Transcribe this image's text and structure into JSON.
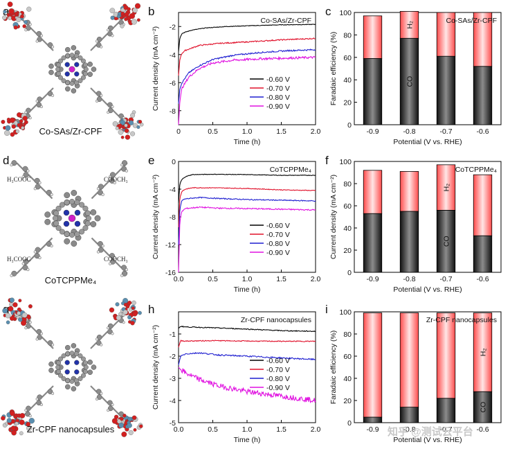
{
  "watermark": "知乎 @测试云平台",
  "colors": {
    "black": "#000000",
    "red": "#e0102a",
    "blue": "#1f1fd0",
    "magenta": "#e010e0",
    "bar_red": "#ff5a5a",
    "co_dark": "#111111"
  },
  "rows": [
    {
      "molecule": {
        "letter": "a",
        "caption": "Co-SAs/Zr-CPF",
        "type": "capsule"
      },
      "chart_data": {
        "letter": "b",
        "type": "line",
        "title": "Co-SAs/Zr-CPF",
        "xlabel": "Time (h)",
        "ylabel": "Current density (mA cm⁻²)",
        "xlim": [
          0,
          2.0
        ],
        "ylim": [
          -9,
          -1
        ],
        "xticks": [
          "0",
          "0.5",
          "1.0",
          "1.5",
          "2.0"
        ],
        "yticks": [
          -8,
          -6,
          -4,
          -2
        ],
        "yticklabels": [
          "-8",
          "-6",
          "-4",
          "-2"
        ],
        "series": [
          {
            "name": "-0.60 V",
            "color": "#000000",
            "x": [
              0,
              0.02,
              0.05,
              0.1,
              0.2,
              0.4,
              0.7,
              1.0,
              1.5,
              2.0
            ],
            "y": [
              -3.8,
              -2.8,
              -2.5,
              -2.4,
              -2.25,
              -2.1,
              -2.0,
              -1.95,
              -1.88,
              -1.85
            ],
            "noise": 0.02
          },
          {
            "name": "-0.70 V",
            "color": "#e0102a",
            "x": [
              0,
              0.02,
              0.05,
              0.1,
              0.3,
              0.6,
              1.0,
              1.5,
              2.0
            ],
            "y": [
              -5.5,
              -4.3,
              -3.9,
              -3.7,
              -3.35,
              -3.2,
              -3.1,
              -2.95,
              -2.85
            ],
            "noise": 0.04
          },
          {
            "name": "-0.80 V",
            "color": "#1f1fd0",
            "x": [
              0,
              0.02,
              0.05,
              0.15,
              0.3,
              0.5,
              0.8,
              1.2,
              1.6,
              2.0
            ],
            "y": [
              -7.5,
              -6.4,
              -6.0,
              -5.3,
              -4.8,
              -4.35,
              -4.05,
              -3.85,
              -3.72,
              -3.65
            ],
            "noise": 0.05
          },
          {
            "name": "-0.90 V",
            "color": "#e010e0",
            "x": [
              0,
              0.02,
              0.05,
              0.15,
              0.3,
              0.5,
              0.8,
              1.2,
              1.6,
              2.0
            ],
            "y": [
              -9.0,
              -7.3,
              -6.4,
              -5.6,
              -5.0,
              -4.6,
              -4.4,
              -4.3,
              -4.25,
              -4.2
            ],
            "noise": 0.08
          }
        ],
        "legend": [
          "-0.60 V",
          "-0.70 V",
          "-0.80 V",
          "-0.90 V"
        ]
      },
      "fe": {
        "letter": "c",
        "type": "bar",
        "title": "Co-SAs/Zr-CPF",
        "xlabel": "Potential (V vs. RHE)",
        "ylabel": "Faradaic efficiency (%)",
        "ylim": [
          0,
          100
        ],
        "yticks": [
          "0",
          "20",
          "40",
          "60",
          "80",
          "100"
        ],
        "categories": [
          "-0.9",
          "-0.8",
          "-0.7",
          "-0.6"
        ],
        "co": [
          59,
          77,
          61,
          52
        ],
        "h2": [
          38,
          24,
          39,
          48
        ],
        "co_label": {
          "index": 1,
          "text": "CO"
        },
        "h2_label": {
          "index": 1,
          "text": "H₂"
        }
      }
    },
    {
      "molecule": {
        "letter": "d",
        "caption": "CoTCPPMe₄",
        "type": "porphyrin",
        "subs": [
          "H₃COOC",
          "COOCH₃",
          "H₃COOC",
          "COOCH₃"
        ]
      },
      "chart_data": {
        "letter": "e",
        "type": "line",
        "title": "CoTCPPMe₄",
        "xlabel": "Time (h)",
        "ylabel": "Current density (mA cm⁻²)",
        "xlim": [
          0,
          2.0
        ],
        "ylim": [
          -16,
          0
        ],
        "xticks": [
          "0.0",
          "0.5",
          "1.0",
          "1.5",
          "2.0"
        ],
        "yticks": [
          -16,
          -12,
          -8,
          -4,
          0
        ],
        "yticklabels": [
          "-16",
          "-12",
          "-8",
          "-4",
          "0"
        ],
        "series": [
          {
            "name": "-0.60 V",
            "color": "#000000",
            "x": [
              0,
              0.02,
              0.05,
              0.1,
              0.2,
              0.5,
              1.0,
              1.5,
              2.0
            ],
            "y": [
              -6.0,
              -3.2,
              -2.6,
              -2.2,
              -1.9,
              -1.85,
              -1.9,
              -2.0,
              -2.0
            ],
            "noise": 0.04
          },
          {
            "name": "-0.70 V",
            "color": "#e0102a",
            "x": [
              0,
              0.02,
              0.05,
              0.1,
              0.2,
              0.5,
              1.0,
              1.5,
              2.0
            ],
            "y": [
              -9.5,
              -5.2,
              -4.3,
              -4.0,
              -3.8,
              -3.8,
              -3.9,
              -4.1,
              -4.2
            ],
            "noise": 0.05
          },
          {
            "name": "-0.80 V",
            "color": "#1f1fd0",
            "x": [
              0,
              0.02,
              0.05,
              0.1,
              0.3,
              0.6,
              1.0,
              1.5,
              2.0
            ],
            "y": [
              -12.0,
              -6.8,
              -5.6,
              -5.4,
              -5.2,
              -5.35,
              -5.5,
              -5.6,
              -5.7
            ],
            "noise": 0.07
          },
          {
            "name": "-0.90 V",
            "color": "#e010e0",
            "x": [
              0,
              0.02,
              0.05,
              0.1,
              0.3,
              0.6,
              1.0,
              1.5,
              2.0
            ],
            "y": [
              -16.0,
              -8.5,
              -7.2,
              -6.8,
              -6.6,
              -6.75,
              -6.8,
              -6.9,
              -7.0
            ],
            "noise": 0.09
          }
        ],
        "legend": [
          "-0.60 V",
          "-0.70 V",
          "-0.80 V",
          "-0.90 V"
        ]
      },
      "fe": {
        "letter": "f",
        "type": "bar",
        "title": "CoTCPPMe₄",
        "xlabel": "Potential (V vs. RHE)",
        "ylabel": "Current density (mA cm⁻²)",
        "ylim": [
          0,
          100
        ],
        "yticks": [
          "0",
          "20",
          "40",
          "60",
          "80",
          "100"
        ],
        "categories": [
          "-0.9",
          "-0.8",
          "-0.7",
          "-0.6"
        ],
        "co": [
          53,
          55,
          56,
          33
        ],
        "h2": [
          39,
          36,
          41,
          55
        ],
        "co_label": {
          "index": 2,
          "text": "CO"
        },
        "h2_label": {
          "index": 2,
          "text": "H₂"
        }
      }
    },
    {
      "molecule": {
        "letter": "g",
        "caption": "Zr-CPF nanocapsules",
        "type": "capsule-nocobalt"
      },
      "chart_data": {
        "letter": "h",
        "type": "line",
        "title": "Zr-CPF nanocapsules",
        "xlabel": "Time (h)",
        "ylabel": "Current density (mA cm⁻²)",
        "xlim": [
          0,
          2.0
        ],
        "ylim": [
          -5,
          0
        ],
        "xticks": [
          "0.0",
          "0.5",
          "1.0",
          "1.5",
          "2.0"
        ],
        "yticks": [
          -5,
          -4,
          -3,
          -2,
          -1
        ],
        "yticklabels": [
          "-5",
          "-4",
          "-3",
          "-2",
          "-1"
        ],
        "series": [
          {
            "name": "-0.60 V",
            "color": "#000000",
            "x": [
              0,
              0.03,
              0.1,
              0.5,
              1.0,
              1.5,
              2.0
            ],
            "y": [
              -0.75,
              -0.65,
              -0.68,
              -0.72,
              -0.78,
              -0.85,
              -0.88
            ],
            "noise": 0.02
          },
          {
            "name": "-0.70 V",
            "color": "#e0102a",
            "x": [
              0,
              0.03,
              0.1,
              0.5,
              1.0,
              1.5,
              2.0
            ],
            "y": [
              -1.6,
              -1.3,
              -1.32,
              -1.3,
              -1.32,
              -1.33,
              -1.33
            ],
            "noise": 0.02
          },
          {
            "name": "-0.80 V",
            "color": "#1f1fd0",
            "x": [
              0,
              0.03,
              0.1,
              0.3,
              0.6,
              1.0,
              1.5,
              2.0
            ],
            "y": [
              -2.4,
              -2.0,
              -1.9,
              -1.85,
              -1.95,
              -2.0,
              -2.08,
              -2.15
            ],
            "noise": 0.03
          },
          {
            "name": "-0.90 V",
            "color": "#e010e0",
            "x": [
              0,
              0.03,
              0.1,
              0.3,
              0.6,
              1.0,
              1.5,
              2.0
            ],
            "y": [
              -2.5,
              -2.6,
              -2.75,
              -3.05,
              -3.35,
              -3.6,
              -3.8,
              -4.0
            ],
            "noise": 0.12
          }
        ],
        "legend": [
          "-0.60 V",
          "-0.70 V",
          "-0.80 V",
          "-0.90 V"
        ]
      },
      "fe": {
        "letter": "i",
        "type": "bar",
        "title": "Zr-CPF nanocapsules",
        "xlabel": "Potential (V vs. RHE)",
        "ylabel": "Faradaic efficiency (%)",
        "ylim": [
          0,
          100
        ],
        "yticks": [
          "0",
          "20",
          "40",
          "60",
          "80",
          "100"
        ],
        "categories": [
          "-0.9",
          "-0.8",
          "-0.7",
          "-0.6"
        ],
        "co": [
          5,
          14,
          22,
          28
        ],
        "h2": [
          94,
          85,
          77,
          71
        ],
        "co_label": {
          "index": 3,
          "text": "CO"
        },
        "h2_label": {
          "index": 3,
          "text": "H₂"
        }
      }
    }
  ]
}
